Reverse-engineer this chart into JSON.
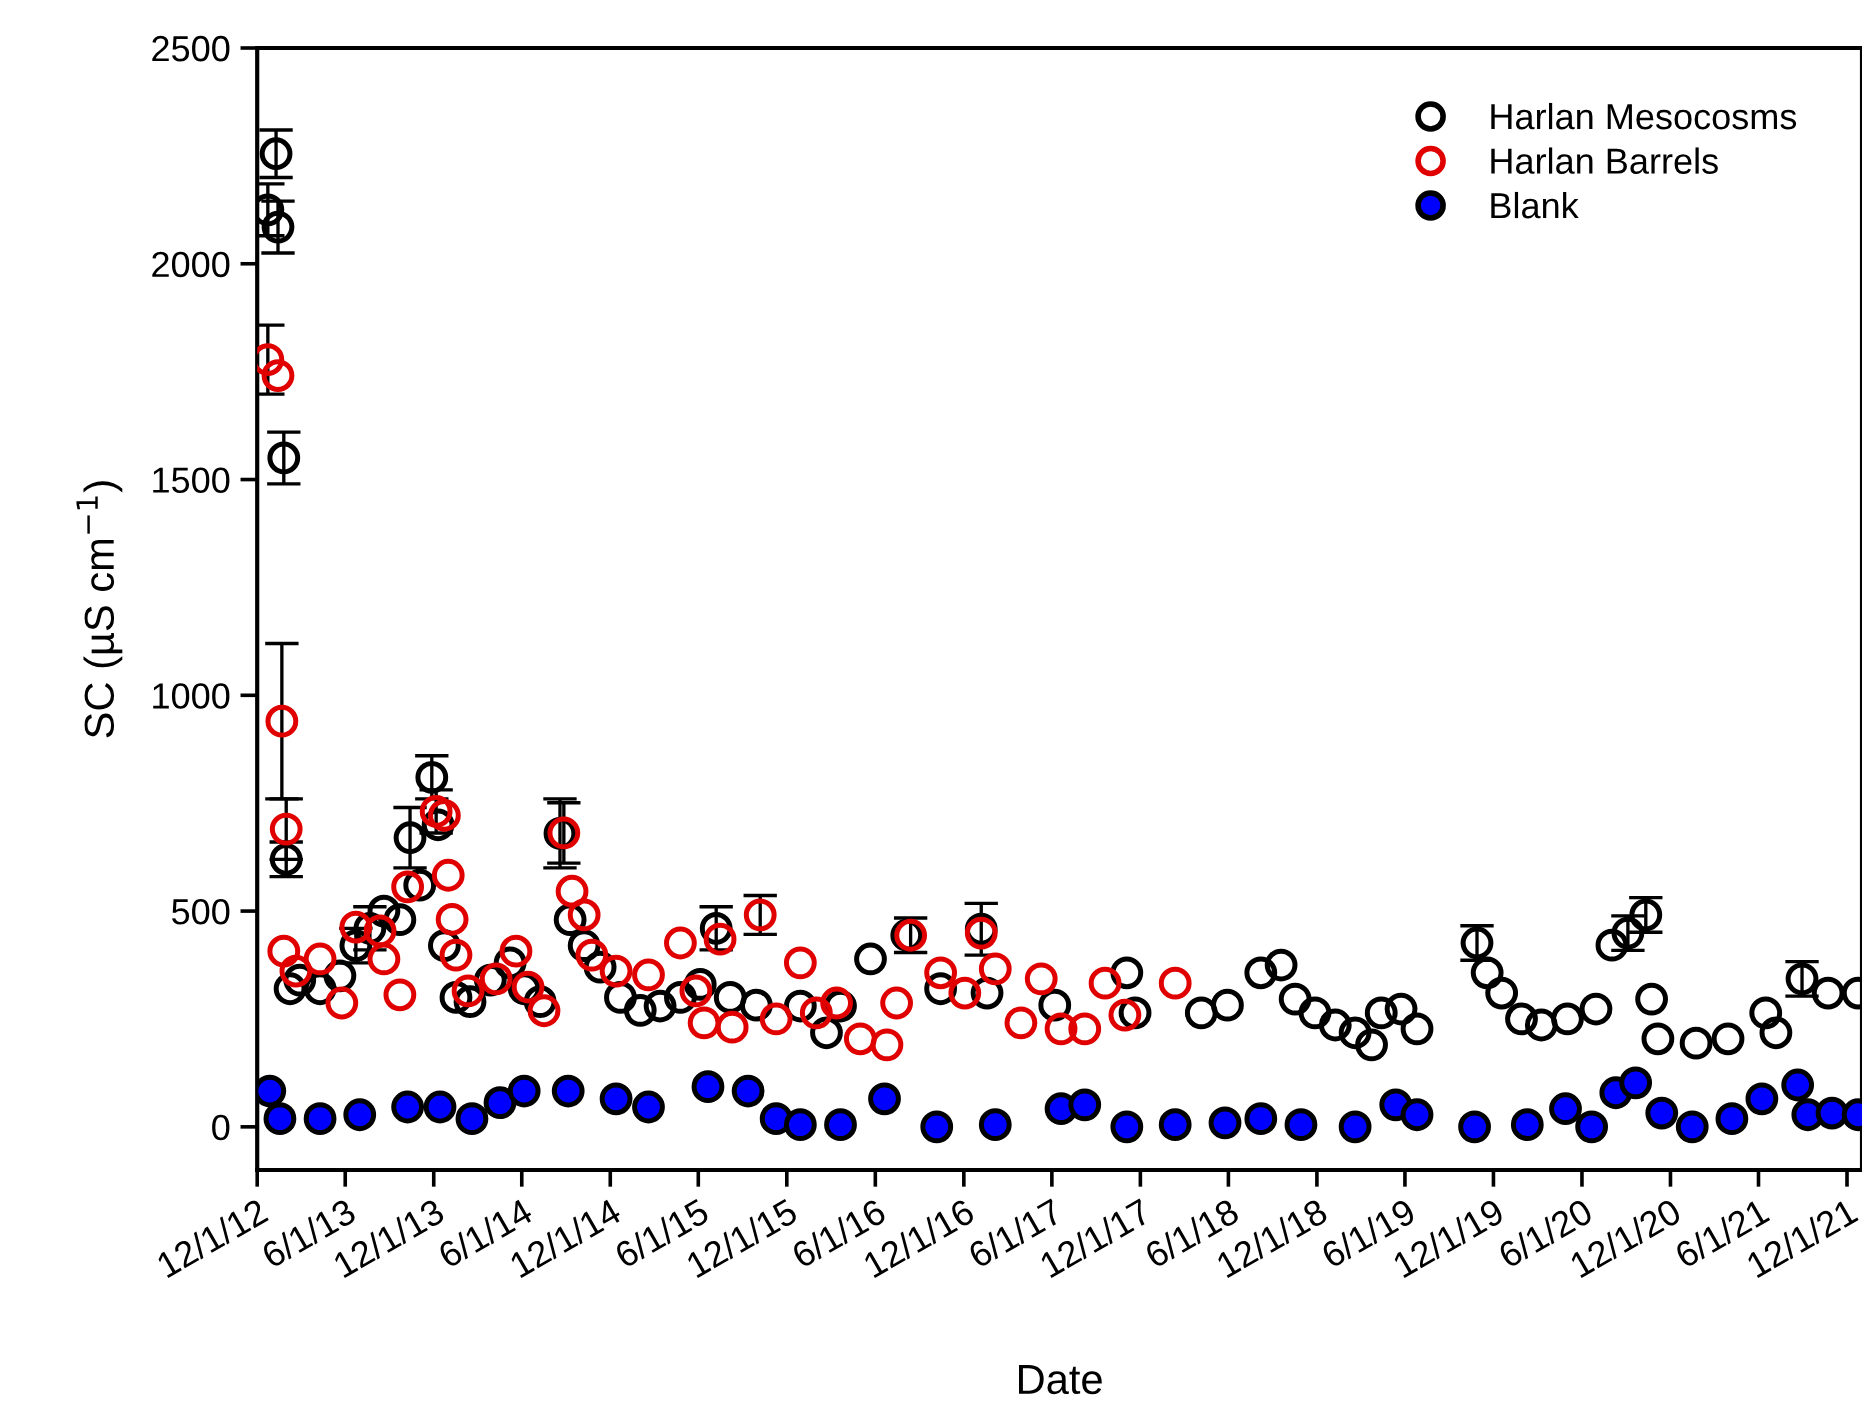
{
  "chart_data": {
    "type": "scatter",
    "xlabel": "Date",
    "ylabel": "SC (µS cm$^{−1}$)",
    "xlim": [
      "2012-12-01",
      "2022-01-01"
    ],
    "xticks": [
      {
        "value": "2012-12-01",
        "label": "12/1/12"
      },
      {
        "value": "2013-06-01",
        "label": "6/1/13"
      },
      {
        "value": "2013-12-01",
        "label": "12/1/13"
      },
      {
        "value": "2014-06-01",
        "label": "6/1/14"
      },
      {
        "value": "2014-12-01",
        "label": "12/1/14"
      },
      {
        "value": "2015-06-01",
        "label": "6/1/15"
      },
      {
        "value": "2015-12-01",
        "label": "12/1/15"
      },
      {
        "value": "2016-06-01",
        "label": "6/1/16"
      },
      {
        "value": "2016-12-01",
        "label": "12/1/16"
      },
      {
        "value": "2017-06-01",
        "label": "6/1/17"
      },
      {
        "value": "2017-12-01",
        "label": "12/1/17"
      },
      {
        "value": "2018-06-01",
        "label": "6/1/18"
      },
      {
        "value": "2018-12-01",
        "label": "12/1/18"
      },
      {
        "value": "2019-06-01",
        "label": "6/1/19"
      },
      {
        "value": "2019-12-01",
        "label": "12/1/19"
      },
      {
        "value": "2020-06-01",
        "label": "6/1/20"
      },
      {
        "value": "2020-12-01",
        "label": "12/1/20"
      },
      {
        "value": "2021-06-01",
        "label": "6/1/21"
      },
      {
        "value": "2021-12-01",
        "label": "12/1/21"
      }
    ],
    "ylim": [
      -100,
      2500
    ],
    "yticks": [
      0,
      500,
      1000,
      1500,
      2000,
      2500
    ],
    "grid": false,
    "legend": "top right",
    "marker": "circle",
    "series": [
      {
        "name": "Harlan Mesocosms",
        "color": "#000000",
        "x": [
          "2012-12-23",
          "2013-01-09",
          "2013-01-13",
          "2013-01-25",
          "2013-01-30",
          "2013-02-07",
          "2013-02-27",
          "2013-04-10",
          "2013-05-21",
          "2013-06-23",
          "2013-07-22",
          "2013-08-20",
          "2013-09-22",
          "2013-10-13",
          "2013-11-02",
          "2013-11-27",
          "2013-12-10",
          "2013-12-23",
          "2014-01-16",
          "2014-02-14",
          "2014-03-28",
          "2014-05-08",
          "2014-06-06",
          "2014-07-09",
          "2014-08-19",
          "2014-09-09",
          "2014-10-08",
          "2014-11-10",
          "2014-12-22",
          "2015-02-01",
          "2015-03-14",
          "2015-04-25",
          "2015-06-05",
          "2015-07-08",
          "2015-08-06",
          "2015-09-29",
          "2015-12-29",
          "2016-02-21",
          "2016-03-21",
          "2016-05-22",
          "2016-08-05",
          "2016-10-14",
          "2017-01-06",
          "2017-01-18",
          "2017-06-07",
          "2017-11-03",
          "2017-11-20",
          "2018-04-06",
          "2018-05-30",
          "2018-08-07",
          "2018-09-18",
          "2018-10-17",
          "2018-11-27",
          "2019-01-08",
          "2019-02-18",
          "2019-03-24",
          "2019-04-13",
          "2019-05-24",
          "2019-06-26",
          "2019-10-28",
          "2019-11-18",
          "2019-12-18",
          "2020-01-28",
          "2020-03-09",
          "2020-05-02",
          "2020-06-30",
          "2020-08-02",
          "2020-09-04",
          "2020-10-11",
          "2020-10-23",
          "2020-11-05",
          "2021-01-23",
          "2021-03-30",
          "2021-06-16",
          "2021-07-07",
          "2021-08-30",
          "2021-10-23",
          "2021-12-24"
        ],
        "values": [
          2125,
          2255,
          2085,
          1550,
          620,
          320,
          340,
          320,
          350,
          420,
          460,
          500,
          480,
          670,
          560,
          810,
          700,
          420,
          300,
          290,
          340,
          380,
          320,
          290,
          680,
          480,
          420,
          370,
          300,
          270,
          280,
          300,
          330,
          460,
          300,
          282,
          280,
          218,
          280,
          389,
          444,
          320,
          458,
          310,
          282,
          357,
          264,
          264,
          282,
          357,
          375,
          296,
          264,
          236,
          218,
          190,
          264,
          273,
          227,
          426,
          357,
          310,
          250,
          236,
          250,
          273,
          421,
          449,
          491,
          296,
          204,
          194,
          204,
          264,
          218,
          343,
          310,
          310
        ],
        "errors": [
          60,
          55,
          60,
          60,
          40,
          null,
          null,
          null,
          null,
          40,
          50,
          null,
          null,
          70,
          null,
          50,
          null,
          null,
          null,
          null,
          null,
          null,
          null,
          null,
          80,
          null,
          null,
          null,
          null,
          null,
          null,
          null,
          null,
          50,
          null,
          null,
          null,
          null,
          null,
          null,
          null,
          null,
          60,
          null,
          null,
          null,
          null,
          null,
          null,
          null,
          null,
          null,
          null,
          null,
          null,
          null,
          null,
          null,
          null,
          40,
          null,
          null,
          null,
          null,
          null,
          null,
          null,
          40,
          40,
          null,
          null,
          null,
          null,
          null,
          null,
          40,
          null,
          null
        ]
      },
      {
        "name": "Harlan Barrels",
        "color": "#e00000",
        "x": [
          "2012-12-23",
          "2013-01-13",
          "2013-01-21",
          "2013-01-25",
          "2013-01-30",
          "2013-02-19",
          "2013-04-10",
          "2013-05-25",
          "2013-06-23",
          "2013-08-12",
          "2013-08-20",
          "2013-09-22",
          "2013-10-08",
          "2013-12-06",
          "2013-12-23",
          "2013-12-31",
          "2014-01-08",
          "2014-01-16",
          "2014-02-10",
          "2014-04-09",
          "2014-05-20",
          "2014-06-14",
          "2014-07-17",
          "2014-08-27",
          "2014-09-13",
          "2014-10-08",
          "2014-10-24",
          "2014-12-13",
          "2015-02-18",
          "2015-04-25",
          "2015-05-27",
          "2015-06-13",
          "2015-07-16",
          "2015-08-10",
          "2015-10-07",
          "2015-11-09",
          "2015-12-29",
          "2016-01-31",
          "2016-03-13",
          "2016-05-01",
          "2016-06-25",
          "2016-07-15",
          "2016-08-13",
          "2016-10-14",
          "2016-12-03",
          "2017-01-06",
          "2017-02-04",
          "2017-03-29",
          "2017-05-10",
          "2017-06-20",
          "2017-08-08",
          "2017-09-19",
          "2017-10-30",
          "2018-02-11"
        ],
        "values": [
          1778,
          1741,
          940,
          407,
          690,
          361,
          389,
          287,
          463,
          454,
          389,
          306,
          556,
          731,
          722,
          583,
          481,
          398,
          315,
          343,
          407,
          324,
          269,
          681,
          546,
          491,
          398,
          361,
          352,
          426,
          315,
          241,
          435,
          231,
          491,
          250,
          380,
          264,
          287,
          204,
          190,
          287,
          444,
          357,
          310,
          449,
          366,
          241,
          343,
          227,
          227,
          333,
          259,
          333
        ],
        "errors": [
          80,
          null,
          180,
          null,
          70,
          null,
          null,
          null,
          null,
          null,
          null,
          null,
          null,
          50,
          null,
          null,
          null,
          null,
          null,
          null,
          null,
          null,
          null,
          70,
          null,
          null,
          null,
          null,
          null,
          null,
          null,
          null,
          null,
          null,
          45,
          null,
          null,
          null,
          null,
          null,
          null,
          null,
          40,
          null,
          null,
          null,
          null,
          null,
          null,
          null,
          null,
          null,
          null,
          null
        ]
      },
      {
        "name": "Blank",
        "color": "#0000ff",
        "x": [
          "2012-12-27",
          "2013-01-17",
          "2013-04-10",
          "2013-07-01",
          "2013-10-08",
          "2013-12-14",
          "2014-02-18",
          "2014-04-17",
          "2014-06-06",
          "2014-09-05",
          "2014-12-13",
          "2015-02-18",
          "2015-06-21",
          "2015-09-12",
          "2015-11-09",
          "2015-12-29",
          "2016-03-21",
          "2016-06-20",
          "2016-10-06",
          "2017-02-04",
          "2017-06-20",
          "2017-08-08",
          "2017-11-03",
          "2018-02-11",
          "2018-05-25",
          "2018-08-07",
          "2018-10-29",
          "2019-02-18",
          "2019-05-13",
          "2019-06-26",
          "2019-10-23",
          "2020-02-09",
          "2020-04-28",
          "2020-06-21",
          "2020-08-10",
          "2020-09-20",
          "2020-11-13",
          "2021-01-15",
          "2021-04-07",
          "2021-06-08",
          "2021-08-21",
          "2021-09-11",
          "2021-10-31",
          "2021-12-24"
        ],
        "values": [
          83,
          19,
          19,
          28,
          46,
          46,
          19,
          56,
          83,
          83,
          65,
          46,
          93,
          83,
          19,
          5,
          5,
          65,
          0,
          5,
          42,
          51,
          0,
          5,
          9,
          19,
          5,
          0,
          51,
          28,
          0,
          5,
          42,
          0,
          79,
          102,
          32,
          0,
          19,
          65,
          97,
          28,
          32,
          28
        ]
      }
    ]
  }
}
